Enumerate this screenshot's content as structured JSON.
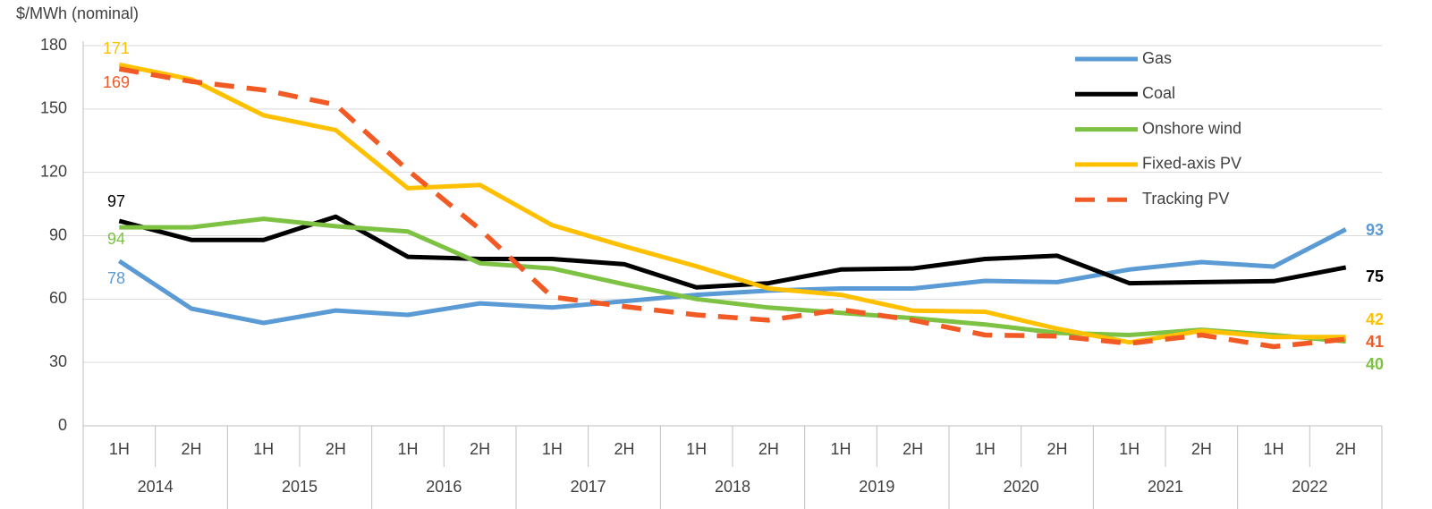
{
  "chart_data": {
    "type": "line",
    "y_label": "$/MWh (nominal)",
    "categories": [
      "1H",
      "2H",
      "1H",
      "2H",
      "1H",
      "2H",
      "1H",
      "2H",
      "1H",
      "2H",
      "1H",
      "2H",
      "1H",
      "2H",
      "1H",
      "2H",
      "1H",
      "2H"
    ],
    "groups": [
      "2014",
      "2015",
      "2016",
      "2017",
      "2018",
      "2019",
      "2020",
      "2021",
      "2022"
    ],
    "ylim": [
      0,
      180
    ],
    "yticks": [
      0,
      30,
      60,
      90,
      120,
      150,
      180
    ],
    "grid": true,
    "legend": "top-right",
    "series": [
      {
        "name": "Gas",
        "color": "#5b9bd5",
        "dash": false,
        "values": [
          78,
          55.5,
          48.7,
          54.6,
          52.5,
          58,
          56,
          59,
          62,
          64,
          65,
          65,
          68.6,
          68,
          74,
          77.5,
          75.4,
          93
        ]
      },
      {
        "name": "Coal",
        "color": "#000000",
        "dash": false,
        "values": [
          97,
          88,
          88,
          99,
          80,
          79,
          79,
          76.5,
          65.5,
          67.5,
          74,
          74.5,
          79,
          80.5,
          67.5,
          68,
          68.5,
          75
        ]
      },
      {
        "name": "Onshore wind",
        "color": "#7dc242",
        "dash": false,
        "values": [
          94,
          94,
          98,
          94.5,
          92,
          77,
          74.5,
          67,
          60,
          56,
          53.5,
          51,
          48,
          44,
          43,
          45.5,
          43,
          40
        ]
      },
      {
        "name": "Fixed-axis PV",
        "color": "#ffc000",
        "dash": false,
        "values": [
          171,
          164,
          147,
          140,
          112.5,
          114,
          95,
          85,
          75.5,
          65,
          62,
          54.5,
          54,
          46,
          39.5,
          45,
          42,
          42
        ]
      },
      {
        "name": "Tracking PV",
        "color": "#f15a24",
        "dash": true,
        "values": [
          169,
          163,
          159,
          152,
          121,
          93,
          61,
          56.5,
          52.5,
          50,
          55,
          50,
          43,
          42.5,
          39,
          43,
          37.5,
          41
        ]
      }
    ]
  }
}
